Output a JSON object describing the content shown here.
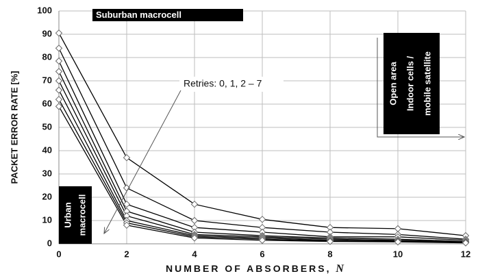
{
  "chart_data": {
    "type": "line",
    "x_label": "NUMBER OF ABSORBERS,",
    "x_label_var": "N",
    "y_label": "PACKET ERROR RATE [%]",
    "x": [
      0,
      2,
      4,
      6,
      8,
      10,
      12
    ],
    "series": [
      {
        "color": "#000000",
        "values": [
          90.5,
          37,
          17,
          10.5,
          7,
          6.5,
          3.5
        ]
      },
      {
        "color": "#000000",
        "values": [
          84,
          24,
          10,
          7,
          5,
          4,
          2
        ]
      },
      {
        "color": "#000000",
        "values": [
          78.5,
          17,
          7,
          5,
          3,
          3,
          1.5
        ]
      },
      {
        "color": "#000000",
        "values": [
          74,
          14,
          5,
          3.5,
          2.5,
          2,
          1
        ]
      },
      {
        "color": "#000000",
        "values": [
          70,
          12,
          4,
          3,
          2,
          1.5,
          0.8
        ]
      },
      {
        "color": "#000000",
        "values": [
          66,
          10,
          3.5,
          2.5,
          1.5,
          1.2,
          0.6
        ]
      },
      {
        "color": "#000000",
        "values": [
          62,
          9,
          3,
          2,
          1.2,
          1,
          0.5
        ]
      },
      {
        "color": "#000000",
        "values": [
          59,
          8,
          2.5,
          1.5,
          1,
          0.8,
          0.4
        ]
      }
    ],
    "xlim": [
      0,
      12
    ],
    "xticks": [
      0,
      2,
      4,
      6,
      8,
      10,
      12
    ],
    "ylim": [
      0,
      100
    ],
    "yticks": [
      0,
      10,
      20,
      30,
      40,
      50,
      60,
      70,
      80,
      90,
      100
    ],
    "grid": true,
    "annotations": {
      "suburban": "Suburban macrocell",
      "urban": [
        "Urban",
        "macrocell"
      ],
      "open": [
        "Open area",
        "Indoor cells /",
        "mobile satellite"
      ],
      "retries": "Retries: 0, 1, 2 – 7"
    }
  }
}
